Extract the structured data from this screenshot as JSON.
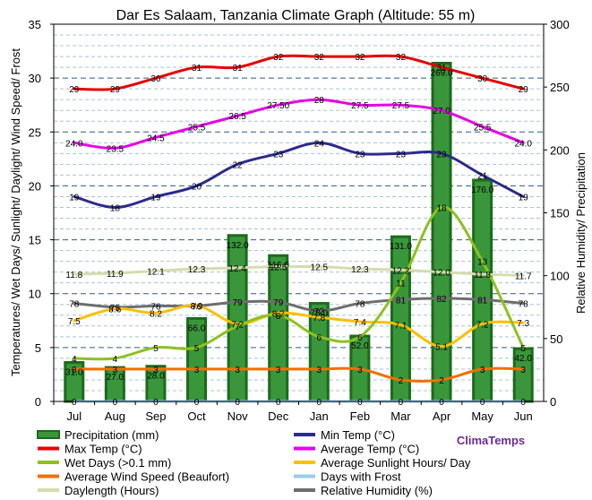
{
  "chart_data": {
    "type": "bar",
    "title": "Dar Es Salaam, Tanzania Climate Graph (Altitude: 55 m)",
    "ylabel": "Temperatures/ Wet Days/ Sunlight/ Daylight/ Wind Speed/ Frost",
    "y2label": "Relative Humidity/ Precipitation",
    "ylim": [
      0,
      35
    ],
    "y2lim": [
      0,
      300
    ],
    "yticks": [
      "0",
      "5",
      "10",
      "15",
      "20",
      "25",
      "30",
      "35"
    ],
    "y2ticks": [
      "0",
      "50",
      "100",
      "150",
      "200",
      "250",
      "300"
    ],
    "categories": [
      "Jul",
      "Aug",
      "Sep",
      "Oct",
      "Nov",
      "Dec",
      "Jan",
      "Feb",
      "Mar",
      "Apr",
      "May",
      "Jun"
    ],
    "grid": true,
    "series": [
      {
        "name": "Precipitation (mm)",
        "axis": "right",
        "type": "bar",
        "color": "#2e8b2e",
        "values": [
          31.0,
          27.0,
          28.0,
          66.0,
          132.0,
          116.0,
          78.0,
          52.0,
          131.0,
          269.0,
          176.0,
          42.0
        ],
        "labels": [
          "31.0",
          "27.0",
          "28.0",
          "66.0",
          "132.0",
          "116.0",
          "78.0",
          "52.0",
          "131.0",
          "269.0",
          "176.0",
          "42.0"
        ]
      },
      {
        "name": "Max Temp (°C)",
        "axis": "left",
        "type": "line",
        "color": "#e60000",
        "values": [
          29,
          29,
          30,
          31,
          31,
          32,
          32,
          32,
          32,
          31,
          30,
          29
        ],
        "labels": [
          "29",
          "29",
          "30",
          "31",
          "31",
          "32",
          "32",
          "32",
          "32",
          "31",
          "30",
          "29"
        ]
      },
      {
        "name": "Average Temp (°C)",
        "axis": "left",
        "type": "line",
        "color": "#e600e6",
        "values": [
          24.0,
          23.5,
          24.5,
          25.5,
          26.5,
          27.5,
          28,
          27.5,
          27.5,
          27.0,
          25.5,
          24.0
        ],
        "labels": [
          "24.0",
          "23.5",
          "24.5",
          "25.5",
          "26.5",
          "27.50",
          "28",
          "27.5",
          "27.5",
          "27.0",
          "25.5",
          "24.0"
        ]
      },
      {
        "name": "Min Temp (°C)",
        "axis": "left",
        "type": "line",
        "color": "#2b2b8c",
        "values": [
          19,
          18,
          19,
          20,
          22,
          23,
          24,
          23,
          23,
          23,
          21,
          19
        ],
        "labels": [
          "19",
          "18",
          "19",
          "20",
          "22",
          "23",
          "24",
          "23",
          "23",
          "23",
          "21",
          "19"
        ]
      },
      {
        "name": "Wet Days (>0.1 mm)",
        "axis": "left",
        "type": "line",
        "color": "#8dc21f",
        "values": [
          4,
          4,
          5,
          5,
          7,
          8,
          6,
          6,
          11,
          18,
          13,
          5
        ],
        "labels": [
          "4",
          "4",
          "5",
          "5",
          "7",
          "8",
          "6",
          "6",
          "11",
          "18",
          "13",
          "5"
        ]
      },
      {
        "name": "Average Sunlight Hours/ Day",
        "axis": "left",
        "type": "line",
        "color": "#ffbf00",
        "values": [
          7.5,
          8.6,
          8.2,
          8.9,
          7.2,
          8.2,
          7.8,
          7.4,
          7.1,
          5.1,
          7.2,
          7.3
        ],
        "labels": [
          "7.5",
          "8.6",
          "8.2",
          "8.9",
          "7.2",
          "8.2",
          "7.8",
          "7.4",
          "7.1",
          "5.1",
          "7.2",
          "7.3"
        ]
      },
      {
        "name": "Average Wind Speed (Beaufort)",
        "axis": "left",
        "type": "line",
        "color": "#f07000",
        "values": [
          3,
          3,
          3,
          3,
          3,
          3,
          3,
          3,
          2,
          2,
          3,
          3
        ],
        "labels": [
          "3",
          "3",
          "3",
          "3",
          "3",
          "3",
          "3",
          "3",
          "2",
          "2",
          "3",
          "3"
        ]
      },
      {
        "name": "Days with Frost",
        "axis": "left",
        "type": "line",
        "color": "#99ccee",
        "values": [
          0,
          0,
          0,
          0,
          0,
          0,
          0,
          0,
          0,
          0,
          0,
          0
        ],
        "labels": [
          "0",
          "0",
          "0",
          "0",
          "0",
          "0",
          "0",
          "0",
          "0",
          "0",
          "0",
          "0"
        ]
      },
      {
        "name": "Daylength (Hours)",
        "axis": "left",
        "type": "line",
        "color": "#d5dcae",
        "values": [
          11.8,
          11.9,
          12.1,
          12.3,
          12.4,
          12.5,
          12.5,
          12.3,
          12.2,
          12.0,
          11.8,
          11.7
        ],
        "labels": [
          "11.8",
          "11.9",
          "12.1",
          "12.3",
          "12.4",
          "12.5",
          "12.5",
          "12.3",
          "12.2",
          "12.0",
          "11.8",
          "11.7"
        ]
      },
      {
        "name": "Relative Humidity (%)",
        "axis": "right",
        "type": "line",
        "color": "#6e6e6e",
        "values": [
          78,
          75,
          76,
          76,
          79,
          79,
          72,
          78,
          81,
          82,
          81,
          78
        ],
        "labels": [
          "78",
          "75",
          "76",
          "76",
          "79",
          "79",
          "72",
          "78",
          "81",
          "82",
          "81",
          "78"
        ]
      }
    ],
    "legend": {
      "placement": "bottom",
      "order": [
        "Precipitation (mm)",
        "Min Temp (°C)",
        "Max Temp (°C)",
        "Average Temp (°C)",
        "Wet Days (>0.1 mm)",
        "Average Sunlight Hours/ Day",
        "Average Wind Speed (Beaufort)",
        "Days with Frost",
        "Daylength (Hours)",
        "Relative Humidity (%)"
      ]
    },
    "brand": "ClimaTemps"
  }
}
